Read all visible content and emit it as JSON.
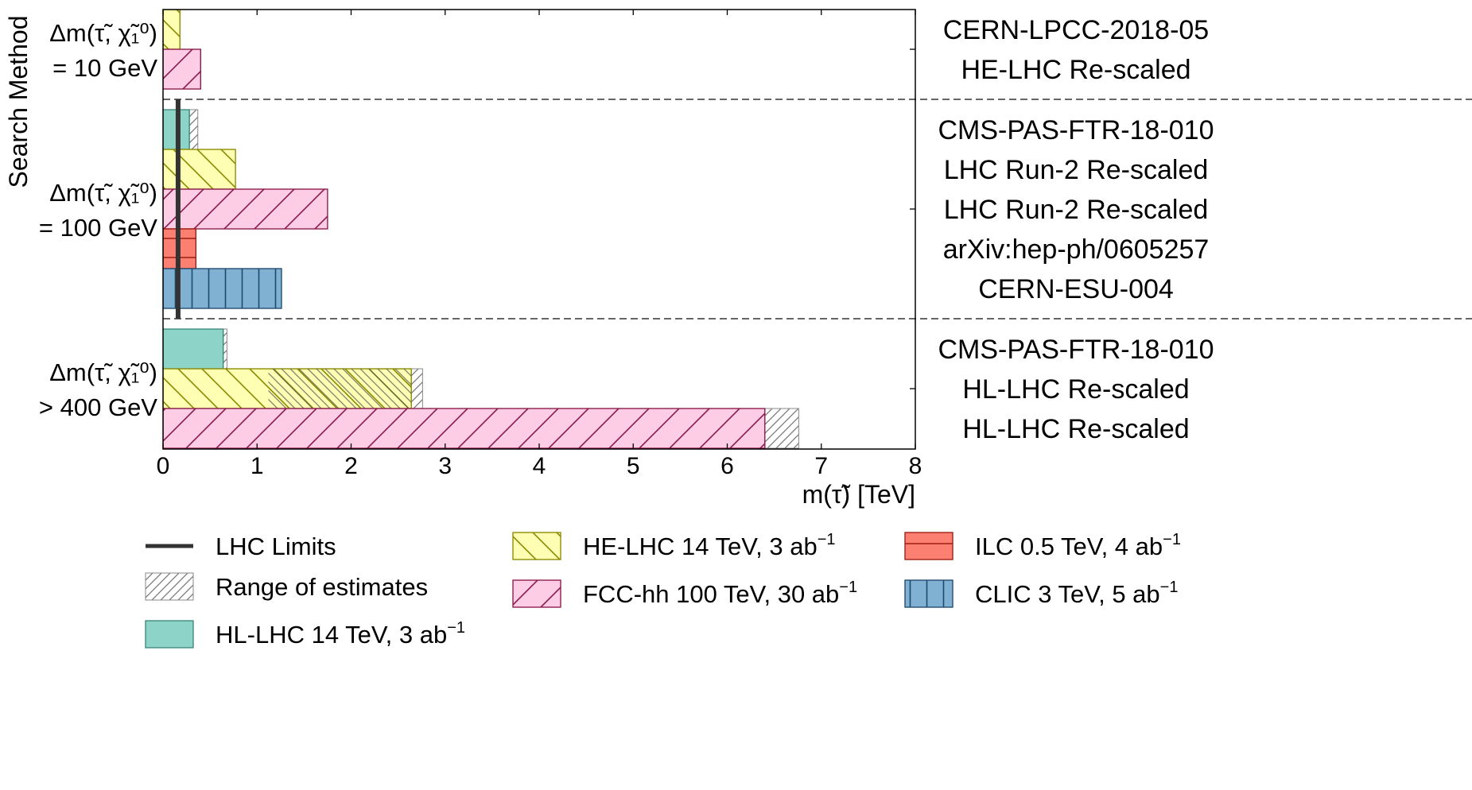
{
  "chart_data": {
    "type": "bar",
    "orientation": "horizontal",
    "xlabel": "m(τ̃) [TeV]",
    "ylabel": "Search Method",
    "xlim": [
      0,
      8
    ],
    "xticks": [
      "0",
      "1",
      "2",
      "3",
      "4",
      "5",
      "6",
      "7",
      "8"
    ],
    "grid": false,
    "lhc_limit": {
      "label": "LHC Limits",
      "value": 0.16
    },
    "groups": [
      {
        "label_lines": [
          "Δm(τ̃, χ̃₁⁰)",
          "= 10 GeV"
        ],
        "bars": [
          {
            "series": "HE-LHC 14 TeV, 3 ab⁻¹",
            "value": 0.18,
            "reference": "CERN-LPCC-2018-05"
          },
          {
            "series": "FCC-hh 100 TeV, 30 ab⁻¹",
            "value": 0.4,
            "reference": "HE-LHC Re-scaled"
          }
        ]
      },
      {
        "label_lines": [
          "Δm(τ̃, χ̃₁⁰)",
          "= 100 GeV"
        ],
        "bars": [
          {
            "series": "HL-LHC 14 TeV, 3 ab⁻¹",
            "value": 0.28,
            "range_max": 0.37,
            "reference": "CMS-PAS-FTR-18-010"
          },
          {
            "series": "HE-LHC 14 TeV, 3 ab⁻¹",
            "value": 0.77,
            "reference": "LHC Run-2 Re-scaled"
          },
          {
            "series": "FCC-hh 100 TeV, 30 ab⁻¹",
            "value": 1.75,
            "reference": "LHC Run-2 Re-scaled"
          },
          {
            "series": "ILC 0.5 TeV, 4 ab⁻¹",
            "value": 0.35,
            "reference": "arXiv:hep-ph/0605257"
          },
          {
            "series": "CLIC 3 TeV, 5 ab⁻¹",
            "value": 1.26,
            "reference": "CERN-ESU-004"
          }
        ]
      },
      {
        "label_lines": [
          "Δm(τ̃, χ̃₁⁰)",
          "> 400 GeV"
        ],
        "bars": [
          {
            "series": "HL-LHC 14 TeV, 3 ab⁻¹",
            "value": 0.64,
            "range_max": 0.68,
            "reference": "CMS-PAS-FTR-18-010"
          },
          {
            "series": "HE-LHC 14 TeV, 3 ab⁻¹",
            "value": 2.64,
            "range_min": 1.12,
            "range_max": 2.76,
            "reference": "HL-LHC Re-scaled"
          },
          {
            "series": "FCC-hh 100 TeV, 30 ab⁻¹",
            "value": 6.4,
            "range_max": 6.76,
            "reference": "HL-LHC Re-scaled"
          }
        ]
      }
    ],
    "series": [
      {
        "name": "HL-LHC 14 TeV, 3 ab⁻¹",
        "color": "#8dd3c7",
        "edge": "#2d7d6e",
        "hatch": "none"
      },
      {
        "name": "HE-LHC 14 TeV, 3 ab⁻¹",
        "color": "#ffffb3",
        "edge": "#8a8a00",
        "hatch": "backslash"
      },
      {
        "name": "FCC-hh 100 TeV, 30 ab⁻¹",
        "color": "#fccde5",
        "edge": "#8b1a4a",
        "hatch": "slash"
      },
      {
        "name": "ILC 0.5 TeV, 4 ab⁻¹",
        "color": "#fb8072",
        "edge": "#a01d10",
        "hatch": "horizontal"
      },
      {
        "name": "CLIC 3 TeV, 5 ab⁻¹",
        "color": "#80b1d3",
        "edge": "#1e4a6e",
        "hatch": "vertical"
      }
    ],
    "range_style": {
      "label": "Range of estimates",
      "color": "#888888",
      "hatch": "dense-slash"
    },
    "legend": {
      "placement": "bottom",
      "entries": [
        {
          "key": "lhc",
          "label": "LHC Limits",
          "sup": ""
        },
        {
          "key": "range",
          "label": "Range of estimates",
          "sup": ""
        },
        {
          "key": "series-0",
          "label": "HL-LHC 14 TeV, 3 ab",
          "sup": "−1"
        },
        {
          "key": "series-1",
          "label": "HE-LHC 14 TeV, 3 ab",
          "sup": "−1"
        },
        {
          "key": "series-2",
          "label": "FCC-hh 100 TeV, 30 ab",
          "sup": "−1"
        },
        {
          "key": "series-3",
          "label": "ILC 0.5 TeV, 4 ab",
          "sup": "−1"
        },
        {
          "key": "series-4",
          "label": "CLIC 3 TeV, 5 ab",
          "sup": "−1"
        }
      ]
    }
  }
}
